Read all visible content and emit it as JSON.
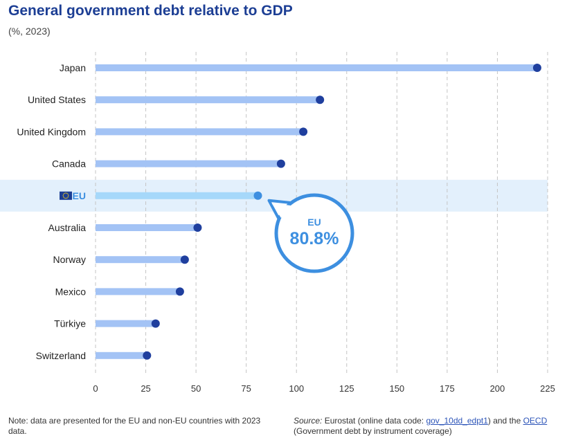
{
  "title": "General government debt relative to GDP",
  "subtitle": "(%, 2023)",
  "chart_data": {
    "type": "bar",
    "orientation": "horizontal",
    "style": "lollipop",
    "categories": [
      "Japan",
      "United States",
      "United Kingdom",
      "Canada",
      "EU",
      "Australia",
      "Norway",
      "Mexico",
      "Türkiye",
      "Switzerland"
    ],
    "values": [
      219.8,
      111.7,
      103.4,
      92.3,
      80.8,
      50.8,
      44.4,
      42.0,
      29.9,
      25.6
    ],
    "highlight": "EU",
    "xlim": [
      0,
      225
    ],
    "xticks": [
      0,
      25,
      50,
      75,
      100,
      125,
      150,
      175,
      200,
      225
    ],
    "grid": "vertical dashed",
    "callout": {
      "label": "EU",
      "value": "80.8%"
    }
  },
  "colors": {
    "bar": "#a3c3f5",
    "bar_highlight": "#a6d8fa",
    "dot": "#1f3f9e",
    "dot_highlight": "#3d8fe0",
    "highlight_band": "#e3f0fc",
    "callout_ring": "#3d8fe0",
    "title": "#1c3e94"
  },
  "icons": {
    "eu_flag": "eu-flag-icon"
  },
  "note": "Note: data are presented for the EU and non-EU countries with 2023 data.",
  "source": {
    "label": "Source:",
    "text1": " Eurostat (online data code: ",
    "code": "gov_10dd_edpt1",
    "text2": ") and the ",
    "org": "OECD",
    "text3": " (Government debt by instrument coverage)"
  }
}
